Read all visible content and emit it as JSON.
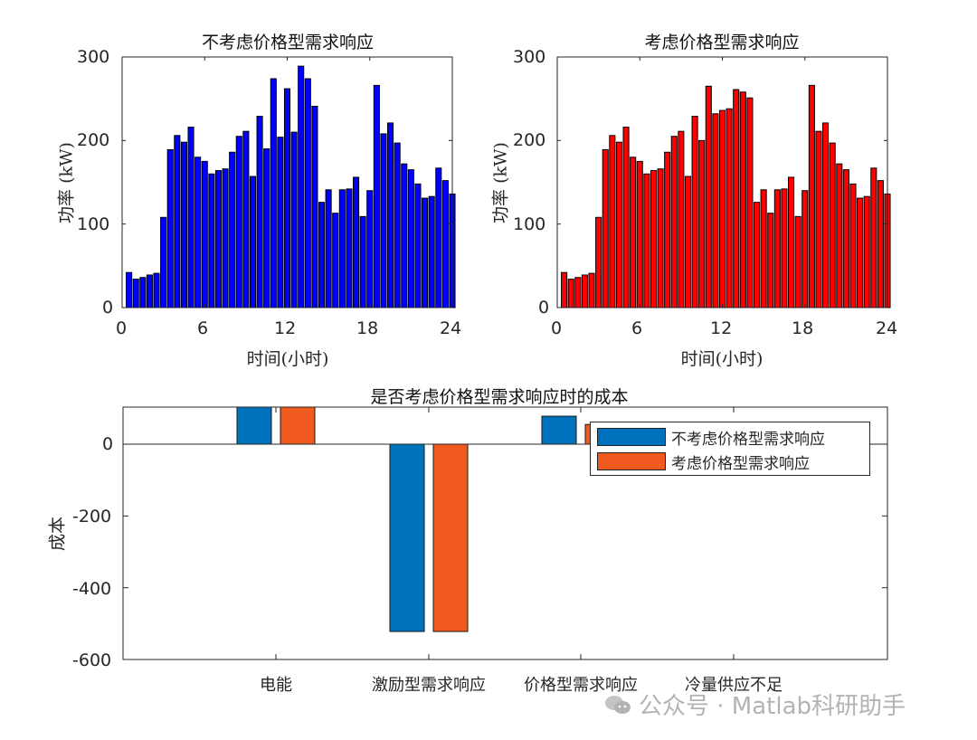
{
  "chart_data": [
    {
      "type": "bar",
      "title": "不考虑价格型需求响应",
      "xlabel": "时间(小时)",
      "ylabel": "功率 (kW)",
      "xlim": [
        0,
        24
      ],
      "ylim": [
        0,
        300
      ],
      "xticks": [
        "0",
        "6",
        "12",
        "18",
        "24"
      ],
      "yticks": [
        "0",
        "100",
        "200",
        "300"
      ],
      "bar_color": "#0000FF",
      "x": [
        0.5,
        1,
        1.5,
        2,
        2.5,
        3,
        3.5,
        4,
        4.5,
        5,
        5.5,
        6,
        6.5,
        7,
        7.5,
        8,
        8.5,
        9,
        9.5,
        10,
        10.5,
        11,
        11.5,
        12,
        12.5,
        13,
        13.5,
        14,
        14.5,
        15,
        15.5,
        16,
        16.5,
        17,
        17.5,
        18,
        18.5,
        19,
        19.5,
        20,
        20.5,
        21,
        21.5,
        22,
        22.5,
        23,
        23.5,
        24
      ],
      "values": [
        42,
        34,
        36,
        39,
        41,
        108,
        189,
        206,
        198,
        216,
        180,
        175,
        160,
        164,
        166,
        186,
        205,
        211,
        157,
        229,
        190,
        274,
        204,
        262,
        210,
        289,
        274,
        241,
        126,
        141,
        113,
        141,
        142,
        156,
        109,
        140,
        266,
        208,
        221,
        197,
        172,
        165,
        148,
        131,
        133,
        167,
        152,
        136
      ]
    },
    {
      "type": "bar",
      "title": "考虑价格型需求响应",
      "xlabel": "时间(小时)",
      "ylabel": "功率 (kW)",
      "xlim": [
        0,
        24
      ],
      "ylim": [
        0,
        300
      ],
      "xticks": [
        "0",
        "6",
        "12",
        "18",
        "24"
      ],
      "yticks": [
        "0",
        "100",
        "200",
        "300"
      ],
      "bar_color": "#FF0000",
      "x": [
        0.5,
        1,
        1.5,
        2,
        2.5,
        3,
        3.5,
        4,
        4.5,
        5,
        5.5,
        6,
        6.5,
        7,
        7.5,
        8,
        8.5,
        9,
        9.5,
        10,
        10.5,
        11,
        11.5,
        12,
        12.5,
        13,
        13.5,
        14,
        14.5,
        15,
        15.5,
        16,
        16.5,
        17,
        17.5,
        18,
        18.5,
        19,
        19.5,
        20,
        20.5,
        21,
        21.5,
        22,
        22.5,
        23,
        23.5,
        24
      ],
      "values": [
        42,
        34,
        36,
        39,
        41,
        108,
        189,
        206,
        198,
        216,
        180,
        175,
        160,
        164,
        166,
        186,
        205,
        211,
        157,
        229,
        200,
        265,
        232,
        236,
        238,
        261,
        258,
        251,
        126,
        141,
        113,
        141,
        142,
        156,
        109,
        140,
        266,
        211,
        221,
        197,
        172,
        165,
        148,
        131,
        133,
        167,
        152,
        136
      ]
    },
    {
      "type": "bar",
      "title": "是否考虑价格型需求响应时的成本",
      "xlabel": "",
      "ylabel": "成本",
      "ylim": [
        -600,
        100
      ],
      "yticks": [
        "0",
        "-200",
        "-400",
        "-600"
      ],
      "categories": [
        "电能",
        "激励型需求响应",
        "价格型需求响应",
        "冷量供应不足"
      ],
      "series": [
        {
          "name": "不考虑价格型需求响应",
          "color": "#0072BD",
          "values": [
            160,
            -522,
            78,
            0
          ]
        },
        {
          "name": "考虑价格型需求响应",
          "color": "#F05A1E",
          "values": [
            150,
            -522,
            55,
            0
          ]
        }
      ],
      "legend_position": "northeast"
    }
  ],
  "watermark": "公众号 · Matlab科研助手"
}
